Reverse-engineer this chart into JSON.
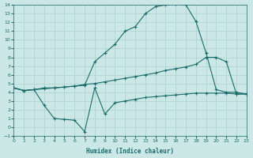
{
  "xlabel": "Humidex (Indice chaleur)",
  "background_color": "#cce8e6",
  "grid_color": "#aacfcd",
  "line_color": "#1a6b6b",
  "xlim": [
    0,
    23
  ],
  "ylim": [
    -1,
    14
  ],
  "xticks": [
    0,
    1,
    2,
    3,
    4,
    5,
    6,
    7,
    8,
    9,
    10,
    11,
    12,
    13,
    14,
    15,
    16,
    17,
    18,
    19,
    20,
    21,
    22,
    23
  ],
  "yticks": [
    -1,
    0,
    1,
    2,
    3,
    4,
    5,
    6,
    7,
    8,
    9,
    10,
    11,
    12,
    13,
    14
  ],
  "line1_x": [
    0,
    1,
    2,
    3,
    4,
    5,
    6,
    7,
    8,
    9,
    10,
    11,
    12,
    13,
    14,
    15,
    16,
    17,
    18,
    19,
    20,
    21,
    22,
    23
  ],
  "line1_y": [
    4.5,
    4.2,
    4.3,
    4.5,
    4.5,
    4.6,
    4.7,
    4.8,
    7.5,
    8.5,
    9.5,
    11.0,
    11.5,
    13.0,
    13.8,
    14.0,
    14.1,
    14.0,
    12.1,
    8.5,
    4.3,
    4.0,
    4.0,
    3.8
  ],
  "line2_x": [
    0,
    1,
    2,
    3,
    4,
    5,
    6,
    7,
    8,
    9,
    10,
    11,
    12,
    13,
    14,
    15,
    16,
    17,
    18,
    19,
    20,
    21,
    22,
    23
  ],
  "line2_y": [
    4.5,
    4.2,
    4.3,
    4.4,
    4.5,
    4.6,
    4.7,
    4.9,
    5.0,
    5.2,
    5.4,
    5.6,
    5.8,
    6.0,
    6.2,
    6.5,
    6.7,
    6.9,
    7.2,
    8.0,
    8.0,
    7.5,
    3.8,
    3.8
  ],
  "line3_x": [
    0,
    1,
    2,
    3,
    4,
    5,
    6,
    7,
    8,
    9,
    10,
    11,
    12,
    13,
    14,
    15,
    16,
    17,
    18,
    19,
    20,
    21,
    22,
    23
  ],
  "line3_y": [
    4.5,
    4.2,
    4.3,
    2.5,
    1.0,
    0.9,
    0.8,
    -0.5,
    4.5,
    1.5,
    2.8,
    3.0,
    3.2,
    3.4,
    3.5,
    3.6,
    3.7,
    3.8,
    3.9,
    3.9,
    3.9,
    3.9,
    3.8,
    3.8
  ]
}
